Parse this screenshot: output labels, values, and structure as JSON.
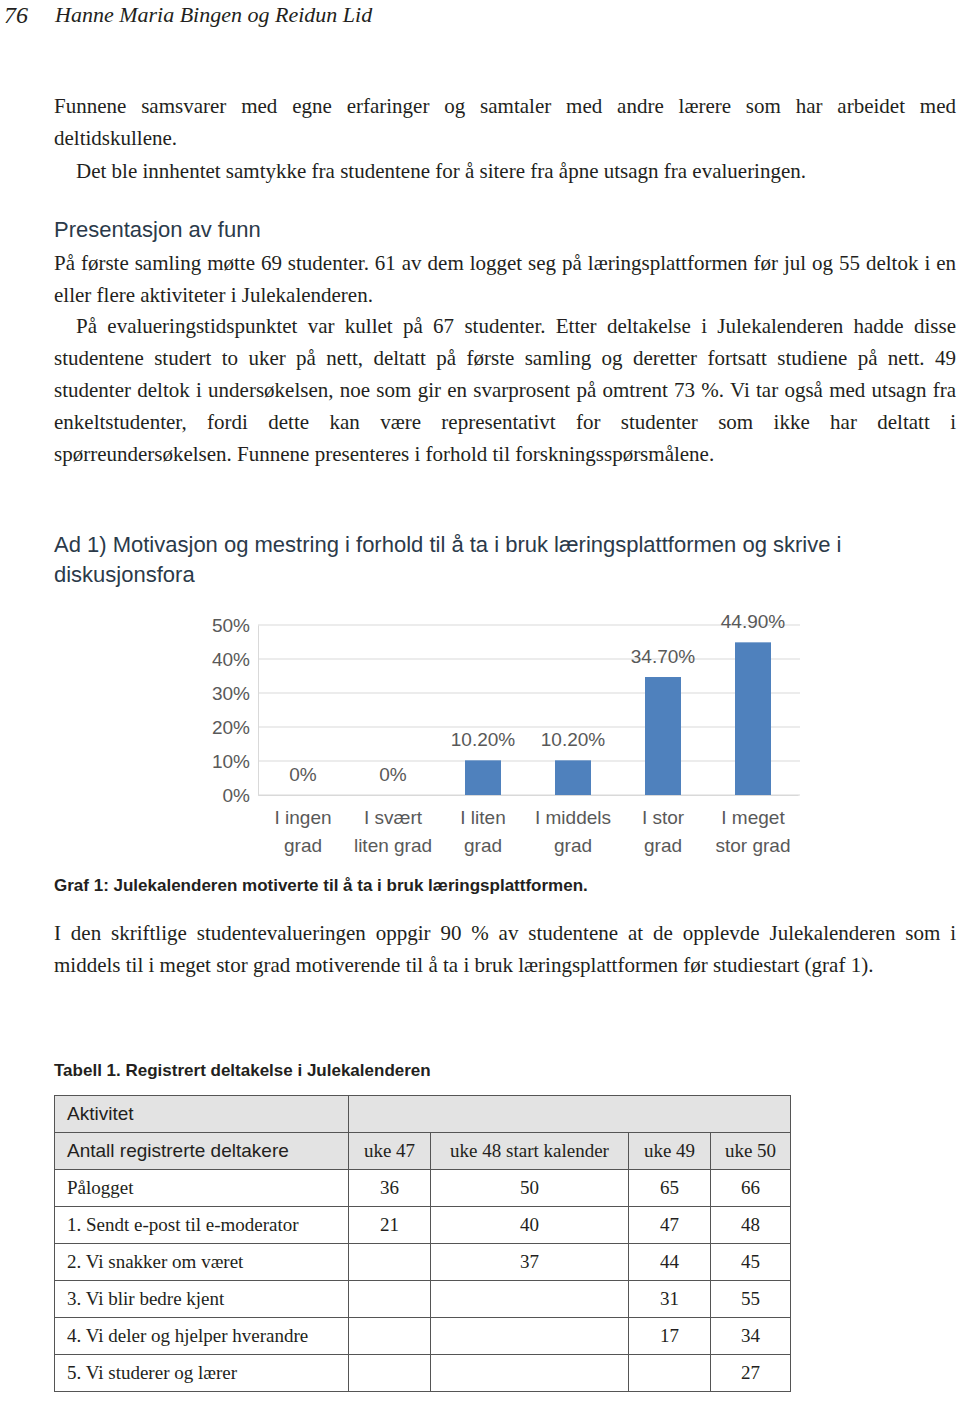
{
  "header": {
    "page": 76,
    "authors": "Hanne Maria Bingen og Reidun Lid"
  },
  "intro": [
    "Funnene samsvarer med egne erfaringer og samtaler med andre lærere som har arbeidet med deltidskullene.",
    "Det ble innhentet samtykke fra studentene for å sitere fra åpne utsagn fra evalueringen."
  ],
  "section_heading": "Presentasjon av funn",
  "section_paragraphs": [
    "På første samling møtte 69 studenter. 61 av dem logget seg på læringsplattformen før jul og 55 deltok i en eller flere aktiviteter i Julekalenderen.",
    "På evalueringstidspunktet var kullet på 67 studenter. Etter deltakelse i Julekalenderen hadde disse studentene studert to uker på nett, deltatt på første samling og deretter fortsatt studiene på nett. 49 studenter deltok i undersøkelsen, noe som gir en svarprosent på omtrent 73 %. Vi tar også med utsagn fra enkeltstudenter, fordi dette kan være representativt for studenter som ikke har deltatt i spørreundersøkelsen. Funnene presenteres i forhold til forskningsspørsmålene."
  ],
  "subsection_heading": "Ad 1) Motivasjon og mestring i forhold til å ta i bruk læringsplattformen og skrive i diskusjonsfora",
  "chart_data": {
    "type": "bar",
    "title": "Graf 1: Julekalenderen motiverte til å ta i bruk læringsplattformen.",
    "categories": [
      "I ingen grad",
      "I svært liten grad",
      "I liten grad",
      "I middels grad",
      "I stor grad",
      "I meget stor grad"
    ],
    "values": [
      0,
      0,
      10.2,
      10.2,
      34.7,
      44.9
    ],
    "value_labels": [
      "0%",
      "0%",
      "10.20%",
      "10.20%",
      "34.70%",
      "44.90%"
    ],
    "color": "#4f81bd",
    "ylim": [
      0,
      50
    ],
    "yticks": [
      {
        "value": 0,
        "label": "0%"
      },
      {
        "value": 10,
        "label": "10%"
      },
      {
        "value": 20,
        "label": "20%"
      },
      {
        "value": 30,
        "label": "30%"
      },
      {
        "value": 40,
        "label": "40%"
      },
      {
        "value": 50,
        "label": "50%"
      }
    ],
    "grid": true,
    "data_labels": true
  },
  "after_chart": [
    "I den skriftlige studentevalueringen oppgir 90 % av studentene at de opplevde Julekalenderen som i middels til i meget stor grad motiverende til å ta i bruk læringsplattformen før studiestart (graf 1)."
  ],
  "table": {
    "title": "Tabell 1. Registrert deltakelse i Julekalenderen",
    "caption_row": "Aktivitet",
    "columns": [
      "Antall registrerte deltakere",
      "uke 47",
      "uke 48 start kalender",
      "uke 49",
      "uke 50"
    ],
    "rows": [
      [
        "Pålogget",
        36,
        50,
        65,
        66
      ],
      [
        "1. Sendt e-post til e-moderator",
        21,
        40,
        47,
        48
      ],
      [
        "2. Vi snakker om været",
        null,
        37,
        44,
        45
      ],
      [
        "3. Vi blir bedre kjent",
        null,
        null,
        31,
        55
      ],
      [
        "4. Vi deler og hjelper hverandre",
        null,
        null,
        17,
        34
      ],
      [
        "5. Vi studerer og lærer",
        null,
        null,
        null,
        27
      ]
    ]
  }
}
